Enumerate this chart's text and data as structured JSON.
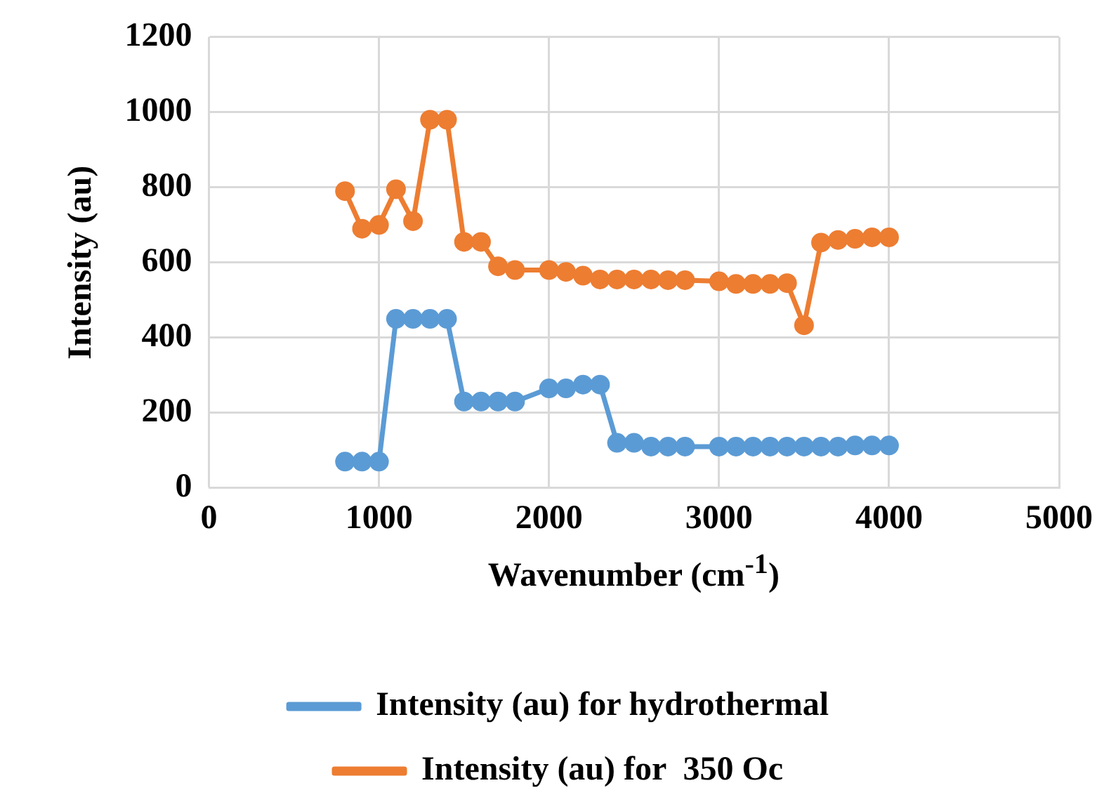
{
  "chart_data": {
    "type": "line",
    "xlabel": "Wavenumber   (cm$^{-1}$)",
    "ylabel": "Intensity (au)",
    "x": [
      800,
      900,
      1000,
      1100,
      1200,
      1300,
      1400,
      1500,
      1600,
      1700,
      1800,
      2000,
      2100,
      2200,
      2300,
      2400,
      2500,
      2600,
      2700,
      2800,
      3000,
      3100,
      3200,
      3300,
      3400,
      3500,
      3600,
      3700,
      3800,
      3900,
      4000
    ],
    "series": [
      {
        "name": "Intensity (au) for hydrothermal",
        "color": "#5b9bd5",
        "values": [
          70,
          70,
          70,
          450,
          450,
          450,
          450,
          230,
          230,
          230,
          230,
          265,
          265,
          275,
          275,
          120,
          120,
          110,
          110,
          110,
          110,
          110,
          110,
          110,
          110,
          110,
          110,
          110,
          113,
          113,
          113
        ]
      },
      {
        "name": "Intensity (au) for  350 Oc",
        "color": "#ed7d31",
        "values": [
          790,
          690,
          700,
          795,
          710,
          980,
          980,
          655,
          655,
          590,
          580,
          580,
          575,
          565,
          555,
          555,
          555,
          555,
          553,
          553,
          550,
          543,
          543,
          543,
          545,
          433,
          653,
          660,
          663,
          667,
          667
        ]
      }
    ],
    "xlim": [
      0,
      5000
    ],
    "xticks": [
      0,
      1000,
      2000,
      3000,
      4000,
      5000
    ],
    "ylim": [
      0,
      1200
    ],
    "yticks": [
      0,
      200,
      400,
      600,
      800,
      1000,
      1200
    ],
    "grid": true,
    "legend": "bottom",
    "marker": "circle",
    "line_style": "solid"
  }
}
